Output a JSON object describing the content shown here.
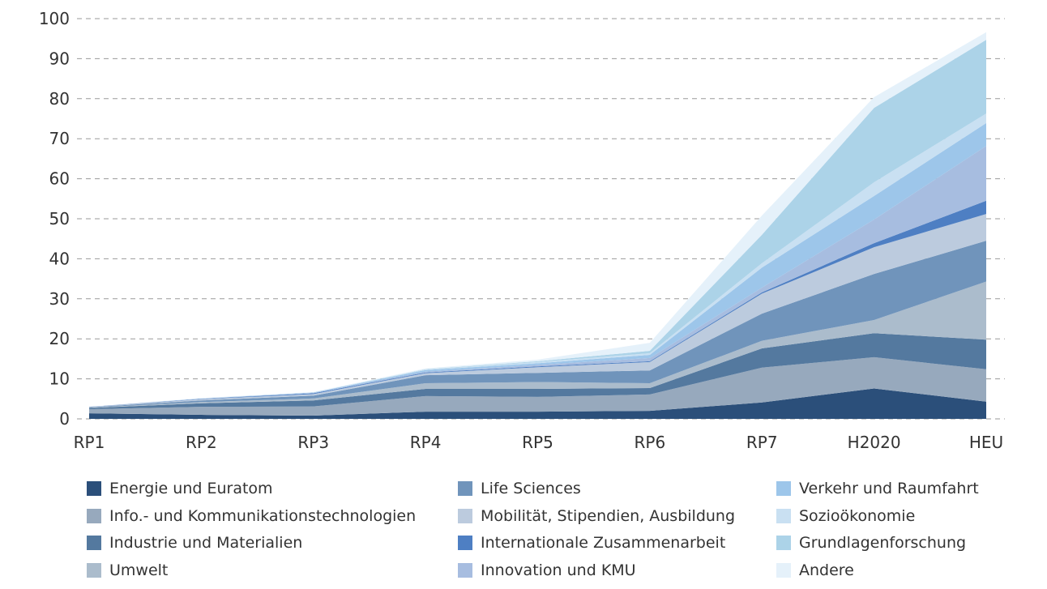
{
  "chart_data": {
    "type": "area",
    "stacked": true,
    "title": "",
    "xlabel": "",
    "ylabel": "",
    "categories": [
      "RP1",
      "RP2",
      "RP3",
      "RP4",
      "RP5",
      "RP6",
      "RP7",
      "H2020",
      "HEU"
    ],
    "ylim": [
      0,
      100
    ],
    "yticks": [
      0,
      10,
      20,
      30,
      40,
      50,
      60,
      70,
      80,
      90,
      100
    ],
    "grid": true,
    "legend_position": "bottom",
    "series": [
      {
        "name": "Energie und Euratom",
        "color": "#2b4f7a",
        "values": [
          1.4,
          1.0,
          0.8,
          1.8,
          1.8,
          2.0,
          4.1,
          7.6,
          4.3
        ]
      },
      {
        "name": "Info.- und Kommunikationstechnologien",
        "color": "#97a9bd",
        "values": [
          1.0,
          2.0,
          2.3,
          3.9,
          3.7,
          4.1,
          8.7,
          7.8,
          8.1
        ]
      },
      {
        "name": "Industrie und Materialien",
        "color": "#54799f",
        "values": [
          0.3,
          0.9,
          1.5,
          1.8,
          2.0,
          1.6,
          4.8,
          6.0,
          7.4
        ]
      },
      {
        "name": "Umwelt",
        "color": "#abbccc",
        "values": [
          0.1,
          0.3,
          0.5,
          1.4,
          1.7,
          1.2,
          1.9,
          3.3,
          14.5
        ]
      },
      {
        "name": "Life Sciences",
        "color": "#7094bb",
        "values": [
          0.1,
          0.4,
          0.7,
          2.0,
          2.3,
          3.2,
          6.8,
          11.5,
          10.2
        ]
      },
      {
        "name": "Mobilität, Stipendien, Ausbildung",
        "color": "#bccbde",
        "values": [
          0.05,
          0.3,
          0.4,
          0.5,
          1.4,
          2.1,
          5.0,
          6.7,
          6.7
        ]
      },
      {
        "name": "Internationale Zusammenarbeit",
        "color": "#4e7fc3",
        "values": [
          0.05,
          0.1,
          0.2,
          0.2,
          0.2,
          0.2,
          0.3,
          1.0,
          3.3
        ]
      },
      {
        "name": "Innovation und KMU",
        "color": "#a7bde0",
        "values": [
          0,
          0.05,
          0.1,
          0.2,
          0.4,
          0.8,
          1.2,
          5.9,
          13.7
        ]
      },
      {
        "name": "Verkehr und Raumfahrt",
        "color": "#9dc6ea",
        "values": [
          0,
          0.05,
          0.1,
          0.4,
          0.4,
          0.8,
          5.0,
          5.9,
          5.7
        ]
      },
      {
        "name": "Sozioökonomie",
        "color": "#c9e0f2",
        "values": [
          0,
          0,
          0,
          0.1,
          0.3,
          0.4,
          1.1,
          3.4,
          2.4
        ]
      },
      {
        "name": "Grundlagenforschung",
        "color": "#acd3e8",
        "values": [
          0,
          0,
          0,
          0.1,
          0.2,
          0.6,
          7.1,
          18.6,
          18.4
        ]
      },
      {
        "name": "Andere",
        "color": "#e5f1fa",
        "values": [
          0,
          0.1,
          0.1,
          0.2,
          0.4,
          2.0,
          4.8,
          2.7,
          1.9
        ]
      }
    ]
  }
}
